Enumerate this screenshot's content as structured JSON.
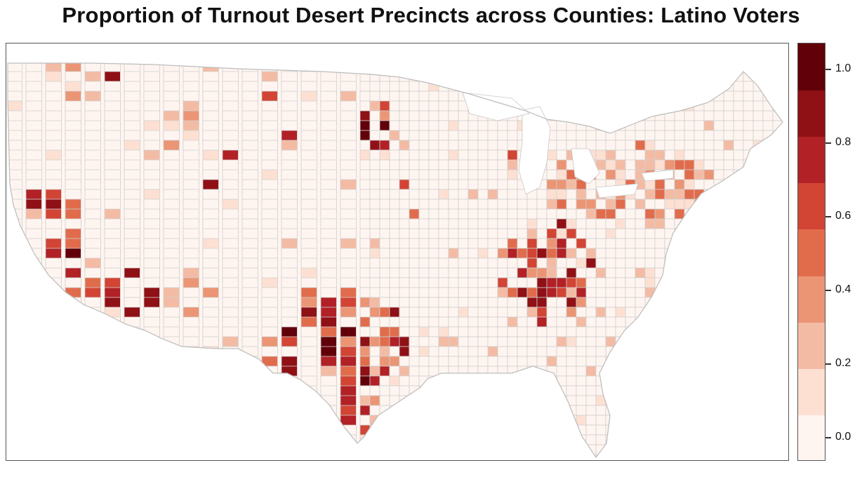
{
  "title": "Proportion of Turnout Desert Precincts across Counties: Latino Voters",
  "legend": {
    "tick_labels": [
      "0.0",
      "0.2",
      "0.4",
      "0.6",
      "0.8",
      "1.0"
    ],
    "tick_values": [
      0.0,
      0.2,
      0.4,
      0.6,
      0.8,
      1.0
    ],
    "min": 0.0,
    "max": 1.0,
    "bins": 8,
    "colors": [
      "#fff5f0",
      "#fde0d2",
      "#f4bba4",
      "#eb9575",
      "#e16c4c",
      "#d24434",
      "#b12126",
      "#8f1015",
      "#620009"
    ]
  },
  "map": {
    "type": "choropleth",
    "region": "Continental United States",
    "unit": "county",
    "variable": "proportion of turnout desert precincts",
    "county_border_color": "#d0d0d0",
    "default_fill": "#fff5f0"
  }
}
